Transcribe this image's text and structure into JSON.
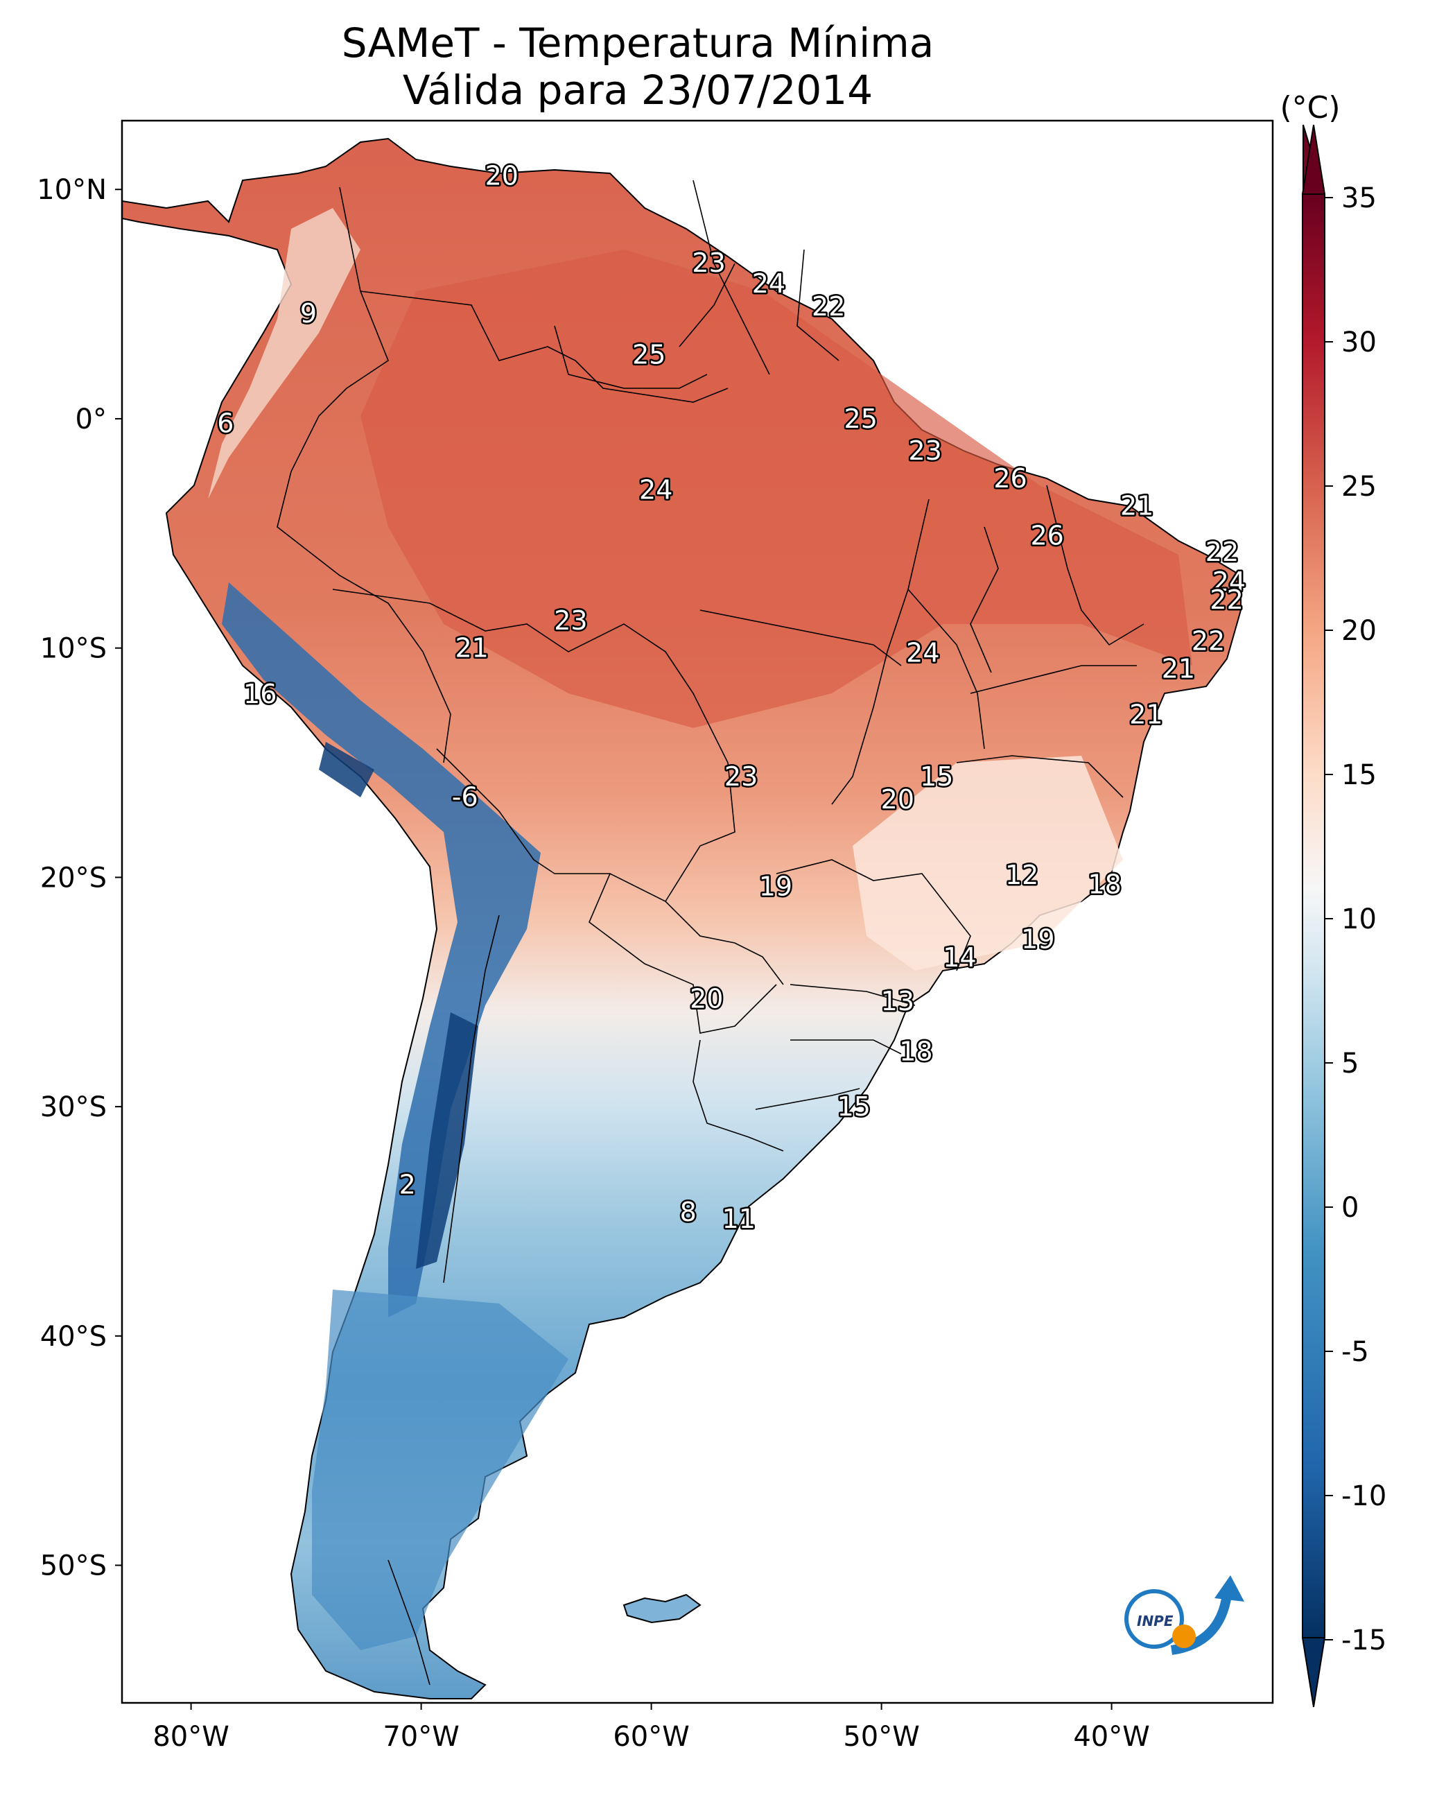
{
  "title": "SAMeT - Temperatura Mínima",
  "subtitle": "Válida para 23/07/2014",
  "colorbar": {
    "unit": "(°C)",
    "ticks": [
      "35",
      "30",
      "25",
      "20",
      "15",
      "10",
      "5",
      "0",
      "-5",
      "-10",
      "-15"
    ]
  },
  "axes": {
    "lon_labels": [
      "80°W",
      "70°W",
      "60°W",
      "50°W",
      "40°W"
    ],
    "lat_labels": [
      "10°N",
      "0°",
      "10°S",
      "20°S",
      "30°S",
      "40°S",
      "50°S"
    ]
  },
  "logo": {
    "text": "INPE",
    "icon": "inpe-logo-icon"
  },
  "station_values": [
    {
      "lon": -66.5,
      "lat": 10.6,
      "v": "20"
    },
    {
      "lon": -74.9,
      "lat": 4.6,
      "v": "9"
    },
    {
      "lon": -78.5,
      "lat": -0.2,
      "v": "6"
    },
    {
      "lon": -57.5,
      "lat": 6.8,
      "v": "23"
    },
    {
      "lon": -54.9,
      "lat": 5.9,
      "v": "24"
    },
    {
      "lon": -52.3,
      "lat": 4.9,
      "v": "22"
    },
    {
      "lon": -60.1,
      "lat": 2.8,
      "v": "25"
    },
    {
      "lon": -50.9,
      "lat": 0.0,
      "v": "25"
    },
    {
      "lon": -48.1,
      "lat": -1.4,
      "v": "23"
    },
    {
      "lon": -44.4,
      "lat": -2.6,
      "v": "26"
    },
    {
      "lon": -38.9,
      "lat": -3.8,
      "v": "21"
    },
    {
      "lon": -59.8,
      "lat": -3.1,
      "v": "24"
    },
    {
      "lon": -42.8,
      "lat": -5.1,
      "v": "26"
    },
    {
      "lon": -35.2,
      "lat": -5.8,
      "v": "22"
    },
    {
      "lon": -34.9,
      "lat": -7.1,
      "v": "24"
    },
    {
      "lon": -35.0,
      "lat": -7.9,
      "v": "22"
    },
    {
      "lon": -63.5,
      "lat": -8.8,
      "v": "23"
    },
    {
      "lon": -67.8,
      "lat": -10.0,
      "v": "21"
    },
    {
      "lon": -48.2,
      "lat": -10.2,
      "v": "24"
    },
    {
      "lon": -35.8,
      "lat": -9.7,
      "v": "22"
    },
    {
      "lon": -37.1,
      "lat": -10.9,
      "v": "21"
    },
    {
      "lon": -38.5,
      "lat": -12.9,
      "v": "21"
    },
    {
      "lon": -77.0,
      "lat": -12.0,
      "v": "16"
    },
    {
      "lon": -56.1,
      "lat": -15.6,
      "v": "23"
    },
    {
      "lon": -47.6,
      "lat": -15.6,
      "v": "15"
    },
    {
      "lon": -49.3,
      "lat": -16.6,
      "v": "20"
    },
    {
      "lon": -68.1,
      "lat": -16.5,
      "v": "-6"
    },
    {
      "lon": -43.9,
      "lat": -19.9,
      "v": "12"
    },
    {
      "lon": -40.3,
      "lat": -20.3,
      "v": "18"
    },
    {
      "lon": -54.6,
      "lat": -20.4,
      "v": "19"
    },
    {
      "lon": -43.2,
      "lat": -22.7,
      "v": "19"
    },
    {
      "lon": -46.6,
      "lat": -23.5,
      "v": "14"
    },
    {
      "lon": -57.6,
      "lat": -25.3,
      "v": "20"
    },
    {
      "lon": -49.3,
      "lat": -25.4,
      "v": "13"
    },
    {
      "lon": -48.5,
      "lat": -27.6,
      "v": "18"
    },
    {
      "lon": -51.2,
      "lat": -30.0,
      "v": "15"
    },
    {
      "lon": -70.6,
      "lat": -33.4,
      "v": "2"
    },
    {
      "lon": -58.4,
      "lat": -34.6,
      "v": "8"
    },
    {
      "lon": -56.2,
      "lat": -34.9,
      "v": "11"
    }
  ]
}
